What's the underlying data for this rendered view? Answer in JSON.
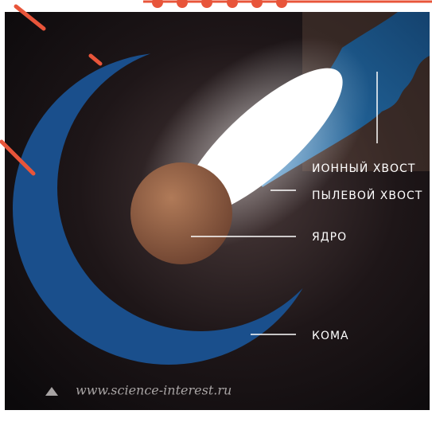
{
  "labels": {
    "ion_tail": "ИОННЫЙ ХВОСТ",
    "dust_tail": "ПЫЛЕВОЙ ХВОСТ",
    "nucleus": "ЯДРО",
    "coma": "КОМА"
  },
  "source": "www.science-interest.ru"
}
